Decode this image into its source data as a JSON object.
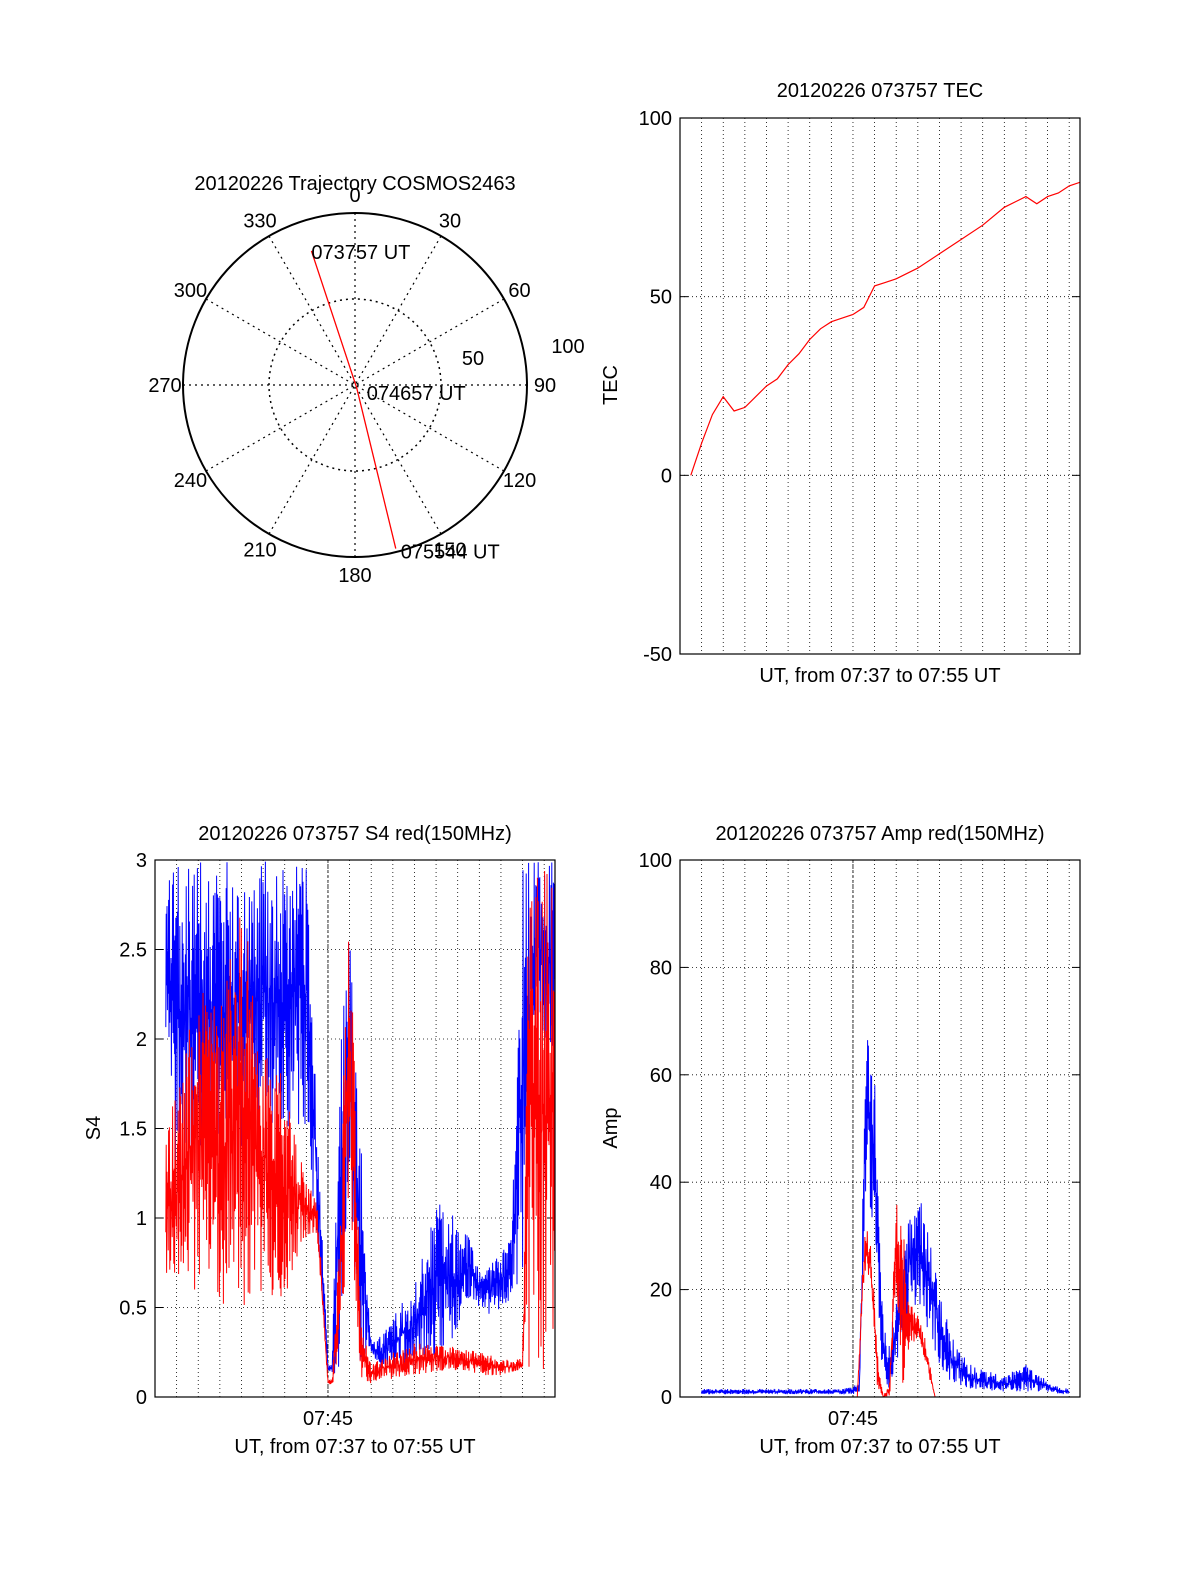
{
  "colors": {
    "red": "#ff0000",
    "blue": "#0000ff",
    "axis": "#000000"
  },
  "chart_data": [
    {
      "id": "trajectory",
      "type": "polar",
      "title": "20120226 Trajectory COSMOS2463",
      "angle_labels": [
        "0",
        "30",
        "60",
        "90",
        "120",
        "150",
        "180",
        "210",
        "240",
        "270",
        "300",
        "330"
      ],
      "radial_labels": [
        "50",
        "100"
      ],
      "radial_range": [
        0,
        100
      ],
      "points": [
        {
          "label": "073757 UT",
          "azimuth": 342,
          "distance": 82
        },
        {
          "label": "074657 UT",
          "azimuth": 150,
          "distance": 2
        },
        {
          "label": "075544 UT",
          "azimuth": 166,
          "distance": 98
        }
      ]
    },
    {
      "id": "tec",
      "type": "line",
      "title": "20120226 073757 TEC",
      "ylabel": "TEC",
      "xlabel": "UT, from 07:37 to 07:55 UT",
      "ylim": [
        -50,
        100
      ],
      "yticks": [
        "100",
        "50",
        "0",
        "-50"
      ],
      "xlim": [
        0,
        18.5
      ],
      "xtick_labels": [],
      "series": [
        {
          "color": "red",
          "x": [
            0.5,
            1.0,
            1.5,
            2.0,
            2.5,
            3.0,
            3.5,
            4.0,
            4.5,
            5.0,
            5.5,
            6.0,
            6.5,
            7.0,
            7.5,
            8.0,
            8.5,
            9.0,
            9.5,
            10.0,
            11.0,
            12.0,
            13.0,
            14.0,
            15.0,
            16.0,
            16.5,
            17.0,
            17.5,
            18.0,
            18.5
          ],
          "y": [
            0,
            9,
            17,
            22,
            18,
            19,
            22,
            25,
            27,
            31,
            34,
            38,
            41,
            43,
            44,
            45,
            47,
            53,
            54,
            55,
            58,
            62,
            66,
            70,
            75,
            78,
            76,
            78,
            79,
            81,
            82
          ]
        }
      ]
    },
    {
      "id": "s4",
      "type": "line",
      "title": "20120226 073757 S4 red(150MHz)",
      "ylabel": "S4",
      "xlabel": "UT, from 07:37 to 07:55 UT",
      "ylim": [
        0,
        3
      ],
      "yticks": [
        "3",
        "2.5",
        "2",
        "1.5",
        "1",
        "0.5",
        "0"
      ],
      "xlim": [
        0,
        18.5
      ],
      "xtick_labels": [
        {
          "x": 8,
          "label": "07:45"
        }
      ],
      "series": [
        {
          "color": "blue",
          "envelope": true,
          "x": [
            0.5,
            1,
            2,
            3,
            4,
            5,
            6,
            7,
            8,
            8.2,
            8.5,
            9,
            9.5,
            10,
            10.5,
            11,
            12,
            13,
            14,
            14.5,
            15,
            15.5,
            16,
            16.5,
            17,
            17.2,
            17.5,
            18,
            18.5
          ],
          "lo": [
            1.5,
            1.2,
            1.4,
            1.4,
            1.4,
            1.5,
            1.5,
            1.5,
            0.14,
            0.13,
            0.14,
            1.2,
            0.13,
            0.25,
            0.15,
            0.15,
            0.18,
            0.22,
            0.35,
            0.55,
            0.5,
            0.45,
            0.5,
            0.55,
            0.6,
            1.0,
            2.0,
            2.0,
            1.9
          ],
          "hi": [
            3,
            3,
            3,
            3,
            3,
            3,
            3,
            3,
            0.18,
            0.2,
            1.8,
            2.7,
            1.5,
            0.3,
            0.35,
            0.45,
            0.65,
            1.1,
            1.0,
            0.9,
            0.7,
            0.75,
            0.8,
            0.9,
            3,
            3,
            3,
            3,
            3
          ]
        },
        {
          "color": "red",
          "envelope": true,
          "x": [
            0.5,
            1,
            2,
            3,
            4,
            5,
            6,
            7,
            7.5,
            8,
            8.2,
            8.5,
            9,
            9.5,
            10,
            10.5,
            11,
            12,
            13,
            14,
            15,
            16,
            16.5,
            17,
            17.3,
            17.6,
            18,
            18.5
          ],
          "lo": [
            0.6,
            0.6,
            0.6,
            0.5,
            0.5,
            0.6,
            0.5,
            0.9,
            0.9,
            0.07,
            0.07,
            0.08,
            1.1,
            0.08,
            0.07,
            0.1,
            0.1,
            0.12,
            0.14,
            0.15,
            0.12,
            0.12,
            0.13,
            0.15,
            0.15,
            0.15,
            0.15,
            0.15
          ],
          "hi": [
            1.5,
            1.7,
            2.3,
            2.2,
            2.8,
            2.1,
            1.8,
            1.2,
            1.1,
            0.1,
            0.1,
            0.8,
            3,
            0.5,
            0.18,
            0.22,
            0.25,
            0.3,
            0.3,
            0.28,
            0.25,
            0.22,
            0.2,
            0.22,
            3,
            3,
            3,
            3
          ]
        }
      ]
    },
    {
      "id": "amp",
      "type": "line",
      "title": "20120226 073757 Amp red(150MHz)",
      "ylabel": "Amp",
      "xlabel": "UT, from 07:37 to 07:55 UT",
      "ylim": [
        0,
        100
      ],
      "yticks": [
        "100",
        "80",
        "60",
        "40",
        "20",
        "0"
      ],
      "xlim": [
        0,
        18.5
      ],
      "xtick_labels": [
        {
          "x": 8,
          "label": "07:45"
        }
      ],
      "series": [
        {
          "color": "blue",
          "envelope": true,
          "x": [
            1,
            2,
            3,
            4,
            5,
            6,
            7,
            7.5,
            8,
            8.3,
            8.6,
            9.0,
            9.3,
            9.6,
            10,
            10.3,
            10.6,
            11,
            11.5,
            12,
            12.5,
            13,
            13.5,
            14,
            15,
            16,
            17,
            17.5,
            18
          ],
          "lo": [
            0.5,
            0.5,
            0.5,
            0.5,
            0.5,
            0.5,
            0.5,
            0.5,
            0.5,
            1,
            40,
            30,
            5,
            1,
            5,
            10,
            15,
            18,
            12,
            6,
            3,
            2,
            1,
            1,
            1,
            1,
            1,
            0.5,
            0.5
          ],
          "hi": [
            1.5,
            1.5,
            1.5,
            1.5,
            1.5,
            1.5,
            1.5,
            1.5,
            2,
            3,
            70,
            60,
            20,
            8,
            20,
            30,
            35,
            40,
            30,
            20,
            12,
            8,
            6,
            5,
            4,
            6,
            3,
            2,
            1.5
          ]
        },
        {
          "color": "red",
          "envelope": true,
          "x": [
            8.2,
            8.5,
            8.8,
            9.1,
            9.4,
            9.7,
            10.0,
            10.3,
            10.6,
            11.0,
            11.4,
            11.8
          ],
          "lo": [
            0,
            20,
            22,
            2,
            0,
            0,
            20,
            0,
            10,
            10,
            5,
            0
          ],
          "hi": [
            0,
            30,
            32,
            10,
            0,
            3,
            37,
            34,
            18,
            16,
            10,
            0
          ]
        }
      ]
    }
  ]
}
